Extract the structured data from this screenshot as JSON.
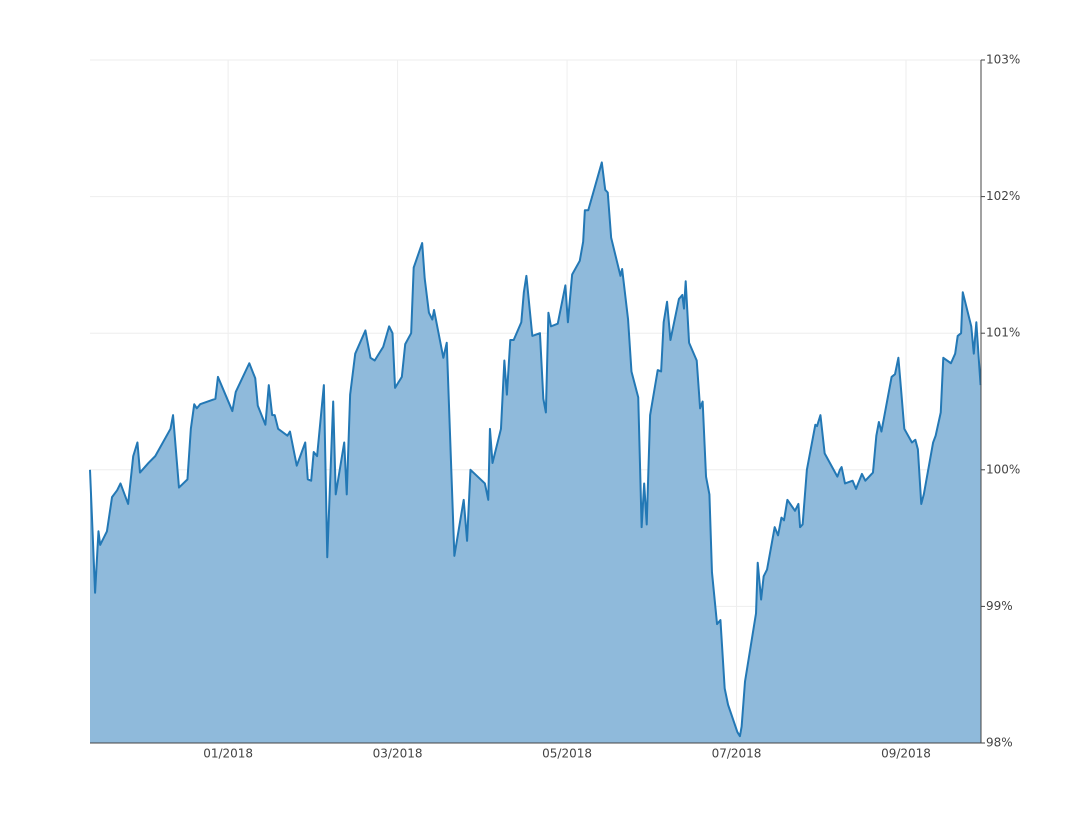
{
  "chart_data": {
    "type": "area",
    "x": [
      -1.63,
      -1.57,
      -1.53,
      -1.51,
      -1.43,
      -1.37,
      -1.31,
      -1.27,
      -1.18,
      -1.12,
      -1.07,
      -1.04,
      -0.94,
      -0.86,
      -0.68,
      -0.65,
      -0.58,
      -0.48,
      -0.44,
      -0.4,
      -0.37,
      -0.33,
      -0.15,
      -0.12,
      0.05,
      0.09,
      0.25,
      0.32,
      0.35,
      0.44,
      0.48,
      0.52,
      0.55,
      0.59,
      0.7,
      0.73,
      0.81,
      0.91,
      0.94,
      0.98,
      1.01,
      1.05,
      1.13,
      1.17,
      1.24,
      1.27,
      1.37,
      1.4,
      1.44,
      1.5,
      1.62,
      1.68,
      1.73,
      1.83,
      1.9,
      1.94,
      1.97,
      2.05,
      2.09,
      2.16,
      2.19,
      2.29,
      2.32,
      2.37,
      2.41,
      2.43,
      2.54,
      2.58,
      2.67,
      2.78,
      2.82,
      2.86,
      3.03,
      3.07,
      3.09,
      3.12,
      3.22,
      3.26,
      3.29,
      3.33,
      3.37,
      3.46,
      3.49,
      3.52,
      3.59,
      3.68,
      3.72,
      3.75,
      3.78,
      3.81,
      3.89,
      3.98,
      4.01,
      4.06,
      4.15,
      4.19,
      4.21,
      4.25,
      4.41,
      4.45,
      4.48,
      4.52,
      4.63,
      4.65,
      4.72,
      4.76,
      4.84,
      4.88,
      4.91,
      4.94,
      4.98,
      5.07,
      5.11,
      5.14,
      5.18,
      5.22,
      5.32,
      5.36,
      5.38,
      5.4,
      5.44,
      5.53,
      5.57,
      5.6,
      5.64,
      5.68,
      5.71,
      5.77,
      5.81,
      5.86,
      5.9,
      6.01,
      6.04,
      6.06,
      6.1,
      6.23,
      6.25,
      6.29,
      6.32,
      6.36,
      6.45,
      6.49,
      6.53,
      6.56,
      6.6,
      6.69,
      6.73,
      6.75,
      6.78,
      6.83,
      6.93,
      6.95,
      6.99,
      7.04,
      7.19,
      7.22,
      7.24,
      7.28,
      7.37,
      7.41,
      7.48,
      7.52,
      7.61,
      7.65,
      7.68,
      7.71,
      7.83,
      7.87,
      7.91,
      7.94,
      7.98,
      8.07,
      8.11,
      8.14,
      8.18,
      8.21,
      8.32,
      8.35,
      8.41,
      8.44,
      8.53,
      8.58,
      8.61,
      8.65,
      8.67,
      8.77,
      8.8,
      8.83,
      8.86,
      8.88
    ],
    "values": [
      100.0,
      99.1,
      99.55,
      99.45,
      99.55,
      99.8,
      99.85,
      99.9,
      99.75,
      100.1,
      100.2,
      99.98,
      100.05,
      100.1,
      100.3,
      100.4,
      99.87,
      99.93,
      100.3,
      100.48,
      100.45,
      100.48,
      100.52,
      100.68,
      100.43,
      100.57,
      100.78,
      100.67,
      100.47,
      100.33,
      100.62,
      100.4,
      100.4,
      100.3,
      100.25,
      100.28,
      100.03,
      100.2,
      99.93,
      99.92,
      100.13,
      100.1,
      100.62,
      99.36,
      100.5,
      99.82,
      100.2,
      99.82,
      100.55,
      100.85,
      101.02,
      100.82,
      100.8,
      100.9,
      101.05,
      101.0,
      100.6,
      100.68,
      100.92,
      101.0,
      101.48,
      101.66,
      101.4,
      101.15,
      101.1,
      101.17,
      100.82,
      100.93,
      99.37,
      99.78,
      99.48,
      100.0,
      99.9,
      99.78,
      100.3,
      100.05,
      100.3,
      100.8,
      100.55,
      100.95,
      100.95,
      101.08,
      101.3,
      101.42,
      100.98,
      101.0,
      100.52,
      100.42,
      101.15,
      101.05,
      101.07,
      101.35,
      101.08,
      101.43,
      101.53,
      101.67,
      101.9,
      101.9,
      102.25,
      102.05,
      102.03,
      101.7,
      101.42,
      101.47,
      101.1,
      100.72,
      100.53,
      99.58,
      99.9,
      99.6,
      100.4,
      100.73,
      100.72,
      101.08,
      101.23,
      100.95,
      101.25,
      101.28,
      101.18,
      101.38,
      100.93,
      100.8,
      100.45,
      100.5,
      99.95,
      99.82,
      99.25,
      98.87,
      98.9,
      98.4,
      98.28,
      98.08,
      98.05,
      98.12,
      98.45,
      98.95,
      99.32,
      99.05,
      99.22,
      99.27,
      99.58,
      99.52,
      99.65,
      99.63,
      99.78,
      99.7,
      99.75,
      99.58,
      99.6,
      100.0,
      100.33,
      100.32,
      100.4,
      100.12,
      99.95,
      100.0,
      100.02,
      99.9,
      99.92,
      99.86,
      99.97,
      99.92,
      99.98,
      100.25,
      100.35,
      100.28,
      100.68,
      100.7,
      100.82,
      100.6,
      100.3,
      100.2,
      100.22,
      100.15,
      99.75,
      99.82,
      100.2,
      100.25,
      100.42,
      100.82,
      100.78,
      100.85,
      100.98,
      101.0,
      101.3,
      101.05,
      100.85,
      101.08,
      100.8,
      100.62
    ],
    "color": "#2378b5",
    "fill_color": "#8fbadb",
    "xlim": [
      -1.63,
      8.885
    ],
    "xticks": [
      {
        "value": 0,
        "label": "01/2018"
      },
      {
        "value": 2,
        "label": "03/2018"
      },
      {
        "value": 4,
        "label": "05/2018"
      },
      {
        "value": 6,
        "label": "07/2018"
      },
      {
        "value": 8,
        "label": "09/2018"
      }
    ],
    "ylim": [
      98,
      103
    ],
    "yticks": [
      {
        "value": 98,
        "label": "98%"
      },
      {
        "value": 99,
        "label": "99%"
      },
      {
        "value": 100,
        "label": "100%"
      },
      {
        "value": 101,
        "label": "101%"
      },
      {
        "value": 102,
        "label": "102%"
      },
      {
        "value": 103,
        "label": "103%"
      }
    ],
    "y_axis_side": "right",
    "grid": true
  }
}
